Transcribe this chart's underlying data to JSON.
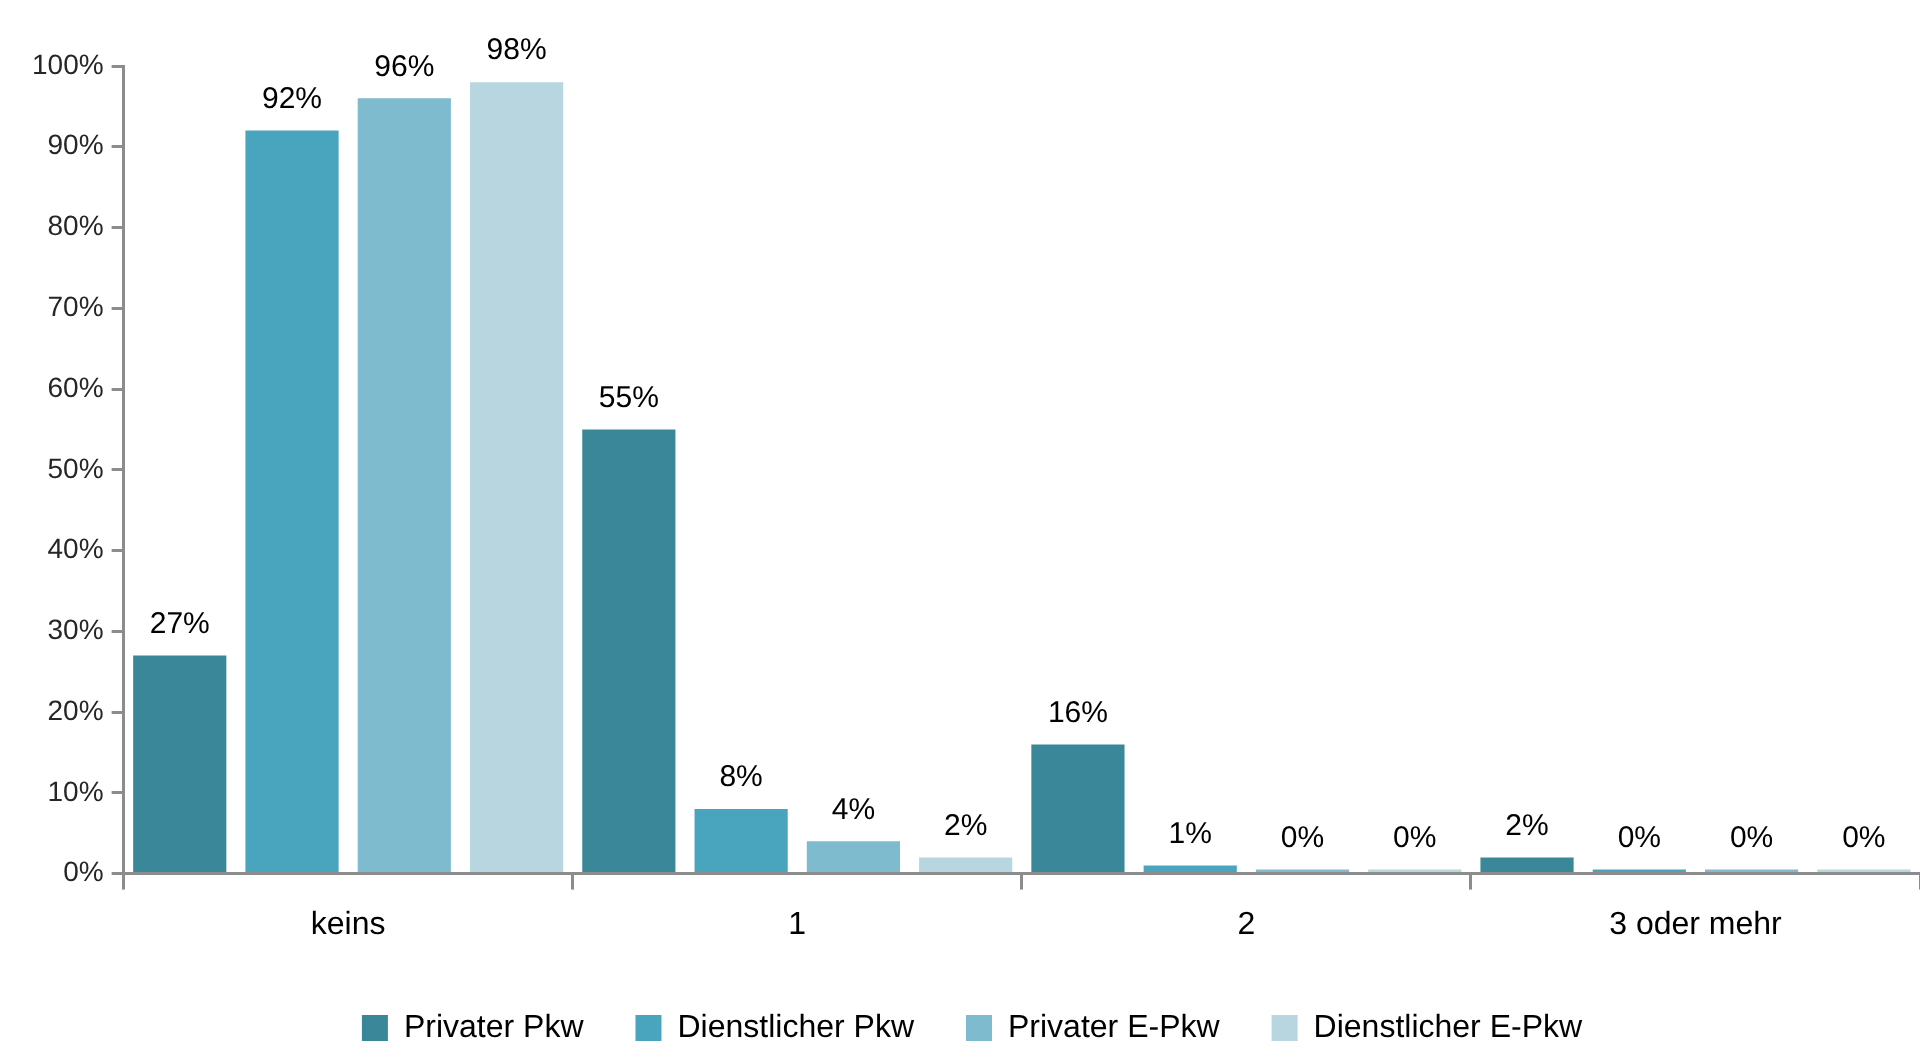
{
  "chart_data": {
    "type": "bar",
    "categories": [
      "keins",
      "1",
      "2",
      "3 oder mehr"
    ],
    "series": [
      {
        "name": "Privater Pkw",
        "color": "#398798",
        "values": [
          27,
          55,
          16,
          2
        ],
        "value_labels": [
          "27%",
          "55%",
          "16%",
          "2%"
        ]
      },
      {
        "name": "Dienstlicher Pkw",
        "color": "#49a4bd",
        "values": [
          92,
          8,
          1,
          0
        ],
        "value_labels": [
          "92%",
          "8%",
          "1%",
          "0%"
        ]
      },
      {
        "name": "Privater E-Pkw",
        "color": "#7fbbcf",
        "values": [
          96,
          4,
          0,
          0
        ],
        "value_labels": [
          "96%",
          "4%",
          "0%",
          "0%"
        ]
      },
      {
        "name": "Dienstlicher E-Pkw",
        "color": "#b7d6e0",
        "values": [
          98,
          2,
          0,
          0
        ],
        "value_labels": [
          "98%",
          "2%",
          "0%",
          "0%"
        ]
      }
    ],
    "ylim": [
      0,
      100
    ],
    "yticks": [
      {
        "value": 0,
        "label": "0%"
      },
      {
        "value": 10,
        "label": "10%"
      },
      {
        "value": 20,
        "label": "20%"
      },
      {
        "value": 30,
        "label": "30%"
      },
      {
        "value": 40,
        "label": "40%"
      },
      {
        "value": 50,
        "label": "50%"
      },
      {
        "value": 60,
        "label": "60%"
      },
      {
        "value": 70,
        "label": "70%"
      },
      {
        "value": 80,
        "label": "80%"
      },
      {
        "value": 90,
        "label": "90%"
      },
      {
        "value": 100,
        "label": "100%"
      }
    ],
    "grid": false,
    "legend": "bottom"
  }
}
